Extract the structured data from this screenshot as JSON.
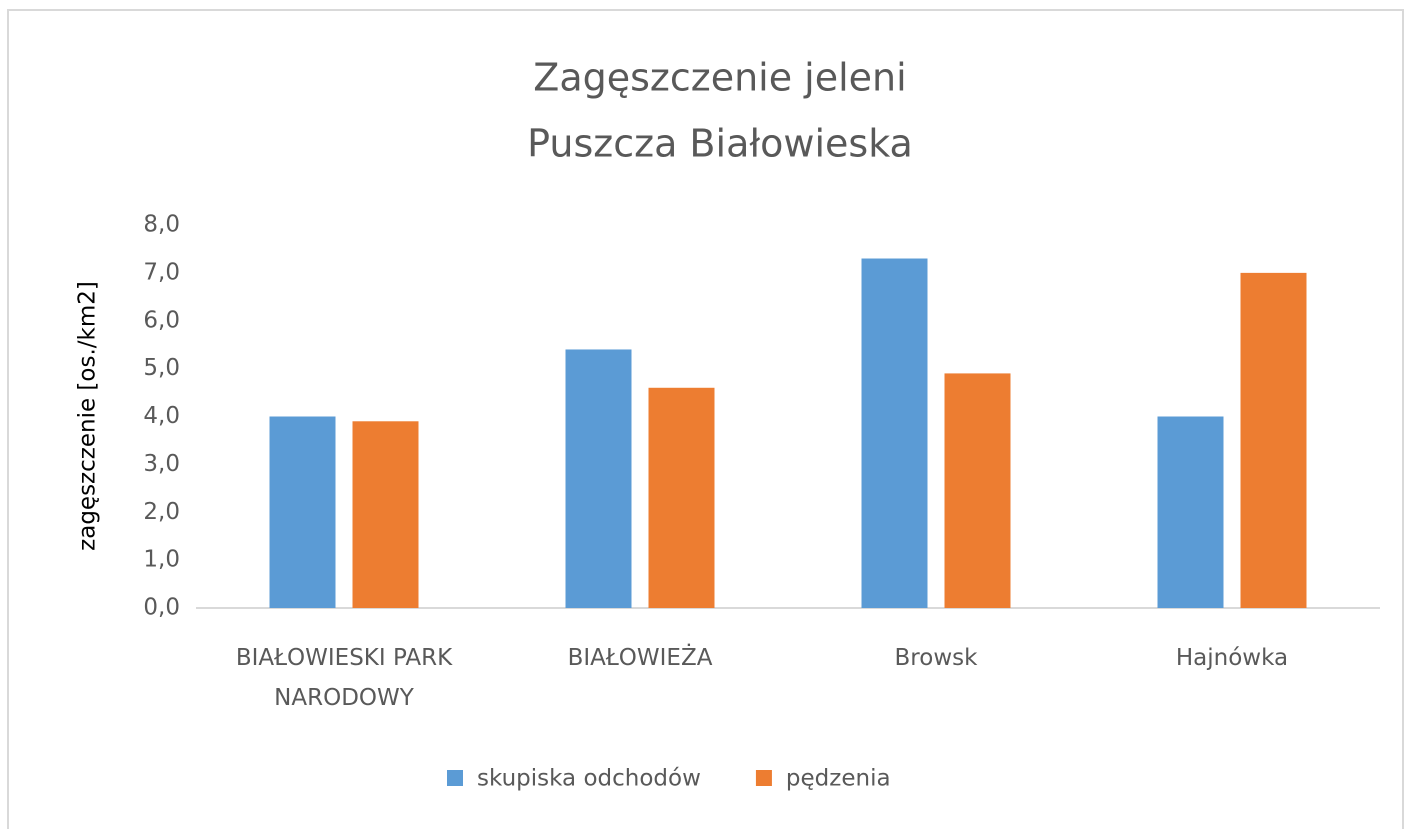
{
  "chart_data": {
    "type": "bar",
    "title": "Zagęszczenie jeleni",
    "subtitle": "Puszcza Białowieska",
    "y_label": "zagęszczenie [os./km2]",
    "categories": [
      "BIAŁOWIESKI PARK NARODOWY",
      "BIAŁOWIEŻA",
      "Browsk",
      "Hajnówka"
    ],
    "series": [
      {
        "name": "skupiska odchodów",
        "color": "#5b9bd5",
        "values": [
          4.0,
          5.4,
          7.3,
          4.0
        ]
      },
      {
        "name": "pędzenia",
        "color": "#ed7d31",
        "values": [
          3.9,
          4.6,
          4.9,
          7.0
        ]
      }
    ],
    "ylim": [
      0,
      8
    ],
    "yticks": [
      {
        "value": 0,
        "label": "0,0"
      },
      {
        "value": 1,
        "label": "1,0"
      },
      {
        "value": 2,
        "label": "2,0"
      },
      {
        "value": 3,
        "label": "3,0"
      },
      {
        "value": 4,
        "label": "4,0"
      },
      {
        "value": 5,
        "label": "5,0"
      },
      {
        "value": 6,
        "label": "6,0"
      },
      {
        "value": 7,
        "label": "7,0"
      },
      {
        "value": 8,
        "label": "8,0"
      }
    ],
    "grid": false,
    "legend": "bottom"
  }
}
